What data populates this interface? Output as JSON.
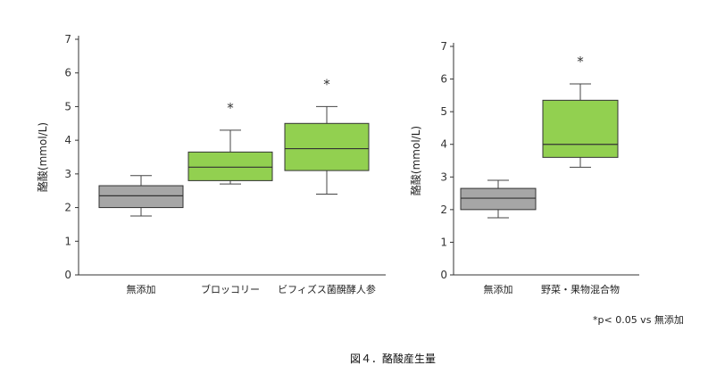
{
  "chart_data": [
    {
      "type": "boxplot",
      "ylabel": "酪酸(mmol/L)",
      "ylim": [
        0,
        7
      ],
      "yticks": [
        0,
        1,
        2,
        3,
        4,
        5,
        6,
        7
      ],
      "categories": [
        "無添加",
        "ブロッコリー",
        "ビフィズス菌醗酵人参"
      ],
      "boxes": [
        {
          "category": "無添加",
          "min": 1.75,
          "q1": 2.0,
          "median": 2.35,
          "q3": 2.65,
          "max": 2.95,
          "color": "#a6a6a6",
          "significant": false
        },
        {
          "category": "ブロッコリー",
          "min": 2.7,
          "q1": 2.8,
          "median": 3.2,
          "q3": 3.65,
          "max": 4.3,
          "color": "#92d050",
          "significant": true
        },
        {
          "category": "ビフィズス菌醗酵人参",
          "min": 2.4,
          "q1": 3.1,
          "median": 3.75,
          "q3": 4.5,
          "max": 5.0,
          "color": "#92d050",
          "significant": true
        }
      ],
      "significance_marker": "*"
    },
    {
      "type": "boxplot",
      "ylabel": "酪酸(mmol/L)",
      "ylim": [
        0,
        7
      ],
      "yticks": [
        0,
        1,
        2,
        3,
        4,
        5,
        6,
        7
      ],
      "categories": [
        "無添加",
        "野菜・果物混合物"
      ],
      "boxes": [
        {
          "category": "無添加",
          "min": 1.75,
          "q1": 2.0,
          "median": 2.35,
          "q3": 2.65,
          "max": 2.9,
          "color": "#a6a6a6",
          "significant": false
        },
        {
          "category": "野菜・果物混合物",
          "min": 3.3,
          "q1": 3.6,
          "median": 4.0,
          "q3": 5.35,
          "max": 5.85,
          "color": "#92d050",
          "significant": true
        }
      ],
      "significance_marker": "*"
    }
  ],
  "footnote": "*p< 0.05 vs 無添加",
  "caption": "図４．酪酸産生量"
}
